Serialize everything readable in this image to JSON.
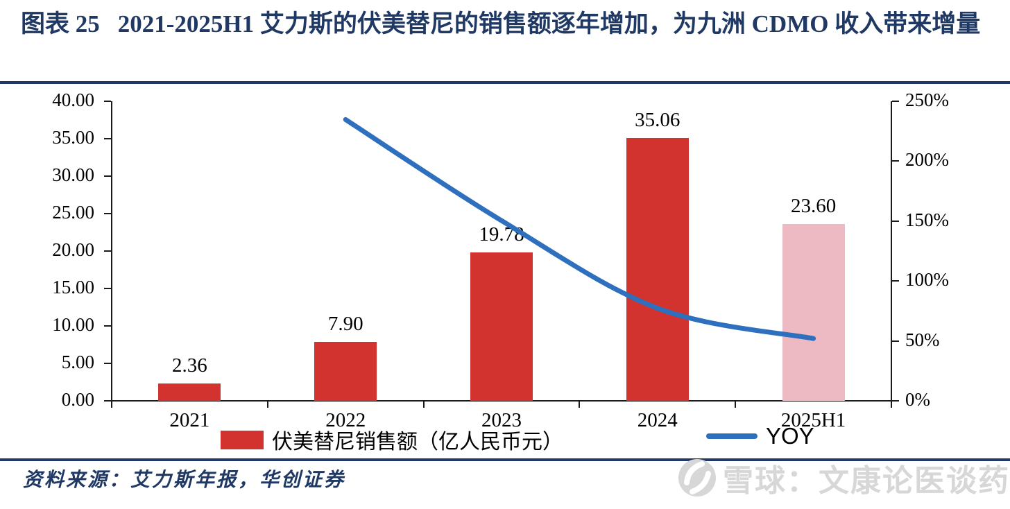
{
  "title": {
    "figure_label": "图表 25",
    "text": "2021-2025H1 艾力斯的伏美替尼的销售额逐年增加，为九洲 CDMO 收入带来增量"
  },
  "chart_data": {
    "type": "bar",
    "categories": [
      "2021",
      "2022",
      "2023",
      "2024",
      "2025H1"
    ],
    "series": [
      {
        "name": "伏美替尼销售额（亿人民币元）",
        "type": "bar",
        "axis": "left",
        "values": [
          2.36,
          7.9,
          19.78,
          35.06,
          23.6
        ],
        "labels": [
          "2.36",
          "7.90",
          "19.78",
          "35.06",
          "23.60"
        ],
        "bar_colors": [
          "#D2332E",
          "#D2332E",
          "#D2332E",
          "#D2332E",
          "#EDBAC4"
        ]
      },
      {
        "name": "YOY",
        "type": "line",
        "axis": "right",
        "values": [
          null,
          234.7,
          150.4,
          77.3,
          52.0
        ],
        "color": "#2E6FBE"
      }
    ],
    "left_axis": {
      "min": 0,
      "max": 40,
      "ticks": [
        "0.00",
        "5.00",
        "10.00",
        "15.00",
        "20.00",
        "25.00",
        "30.00",
        "35.00",
        "40.00"
      ]
    },
    "right_axis": {
      "min": 0,
      "max": 250,
      "ticks": [
        "0%",
        "50%",
        "100%",
        "150%",
        "200%",
        "250%"
      ]
    },
    "legend": [
      "伏美替尼销售额（亿人民币元）",
      "YOY"
    ],
    "legend_position": "bottom",
    "grid": false
  },
  "source": {
    "text": "资料来源：艾力斯年报，华创证券"
  },
  "watermark": {
    "text": "雪球：文康论医谈药",
    "icon": "xueqiu-logo"
  },
  "colors": {
    "bar_red": "#D2332E",
    "bar_pink": "#EDBAC4",
    "line_blue": "#2E6FBE",
    "navy": "#1F3864",
    "axis_black": "#1a1a1a",
    "watermark_gray": "#D7D7D7"
  }
}
